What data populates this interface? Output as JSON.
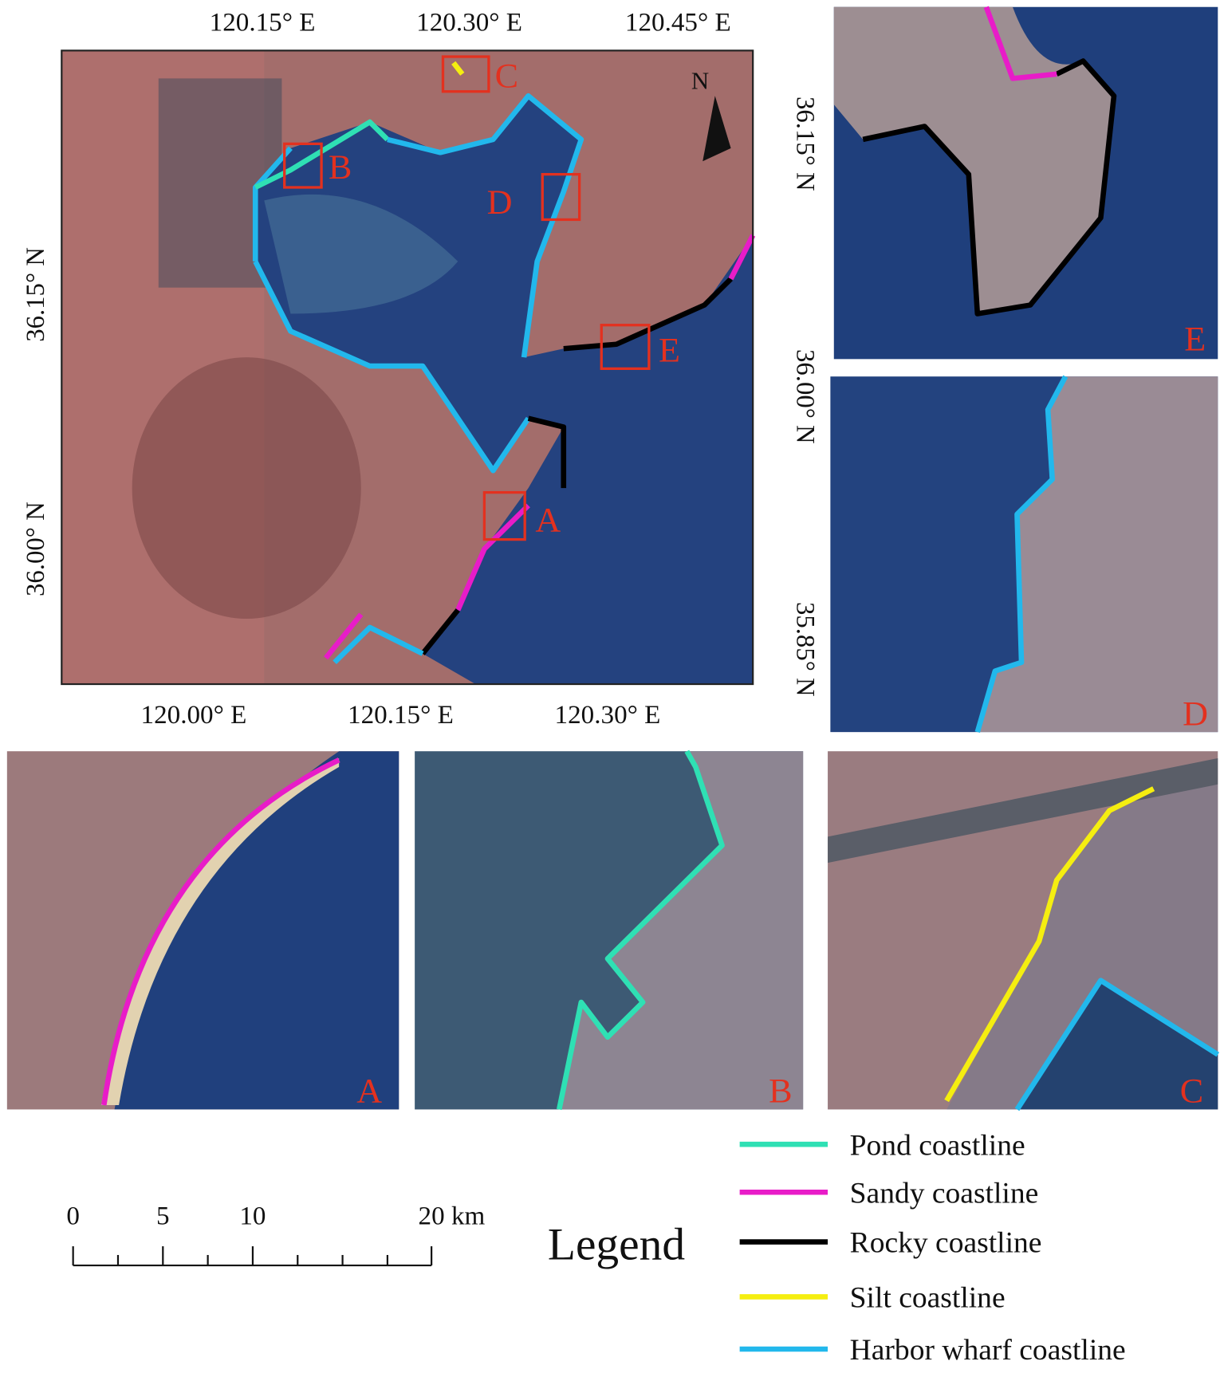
{
  "main_map": {
    "top_ticks": [
      "120.15° E",
      "120.30° E",
      "120.45° E"
    ],
    "bottom_ticks": [
      "120.00° E",
      "120.15° E",
      "120.30° E"
    ],
    "left_ticks": [
      "36.15° N",
      "36.00° N"
    ],
    "right_ticks": [
      "36.15° N",
      "36.00° N",
      "35.85° N"
    ],
    "north_label": "N",
    "boxes": [
      "A",
      "B",
      "C",
      "D",
      "E"
    ]
  },
  "insets": {
    "e": "E",
    "d": "D",
    "a": "A",
    "b": "B",
    "c": "C"
  },
  "scale_bar": {
    "labels": [
      "0",
      "5",
      "10",
      "20 km"
    ]
  },
  "legend": {
    "title": "Legend",
    "items": [
      {
        "label": "Pond coastline",
        "color": "#2fe0b4"
      },
      {
        "label": "Sandy coastline",
        "color": "#e81cc8"
      },
      {
        "label": "Rocky coastline",
        "color": "#000000"
      },
      {
        "label": "Silt coastline",
        "color": "#f5ee10"
      },
      {
        "label": "Harbor wharf coastline",
        "color": "#22b8ec"
      }
    ]
  }
}
